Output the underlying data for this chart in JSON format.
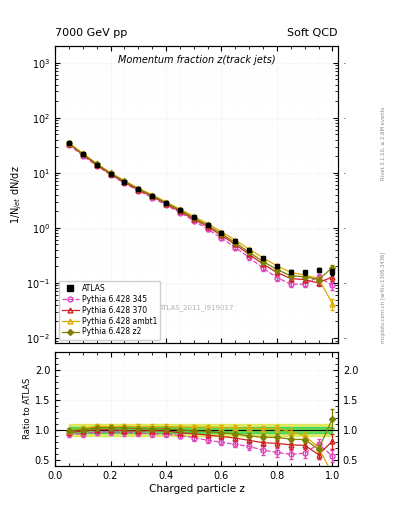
{
  "title_main": "Momentum fraction z(track jets)",
  "title_top_left": "7000 GeV pp",
  "title_top_right": "Soft QCD",
  "ylabel_main": "1/N$_{jet}$ dN/dz",
  "ylabel_ratio": "Ratio to ATLAS",
  "xlabel": "Charged particle z",
  "watermark": "ATLAS_2011_I919017",
  "right_label_top": "Rivet 3.1.10, ≥ 2.6M events",
  "right_label_bottom": "mcplots.cern.ch [arXiv:1306.3436]",
  "ylim_main": [
    0.008,
    2000
  ],
  "ylim_ratio": [
    0.4,
    2.3
  ],
  "xlim": [
    0.0,
    1.02
  ],
  "atlas_x": [
    0.05,
    0.1,
    0.15,
    0.2,
    0.25,
    0.3,
    0.35,
    0.4,
    0.45,
    0.5,
    0.55,
    0.6,
    0.65,
    0.7,
    0.75,
    0.8,
    0.85,
    0.9,
    0.95,
    1.0
  ],
  "atlas_y": [
    35.0,
    22.0,
    14.0,
    9.5,
    6.8,
    5.0,
    3.8,
    2.8,
    2.1,
    1.55,
    1.15,
    0.82,
    0.58,
    0.4,
    0.28,
    0.2,
    0.16,
    0.155,
    0.17,
    0.16
  ],
  "atlas_yerr": [
    1.5,
    0.8,
    0.5,
    0.35,
    0.25,
    0.18,
    0.13,
    0.1,
    0.08,
    0.06,
    0.05,
    0.04,
    0.03,
    0.02,
    0.015,
    0.013,
    0.012,
    0.013,
    0.015,
    0.02
  ],
  "p345_x": [
    0.05,
    0.1,
    0.15,
    0.2,
    0.25,
    0.3,
    0.35,
    0.4,
    0.45,
    0.5,
    0.55,
    0.6,
    0.65,
    0.7,
    0.75,
    0.8,
    0.85,
    0.9,
    0.95,
    1.0
  ],
  "p345_y": [
    32.5,
    20.5,
    13.5,
    9.2,
    6.5,
    4.75,
    3.55,
    2.6,
    1.9,
    1.35,
    0.95,
    0.65,
    0.44,
    0.29,
    0.185,
    0.125,
    0.095,
    0.095,
    0.13,
    0.09
  ],
  "p345_yerr": [
    1.8,
    1.1,
    0.7,
    0.5,
    0.35,
    0.25,
    0.18,
    0.14,
    0.1,
    0.08,
    0.06,
    0.04,
    0.03,
    0.025,
    0.02,
    0.015,
    0.012,
    0.012,
    0.015,
    0.015
  ],
  "p370_x": [
    0.05,
    0.1,
    0.15,
    0.2,
    0.25,
    0.3,
    0.35,
    0.4,
    0.45,
    0.5,
    0.55,
    0.6,
    0.65,
    0.7,
    0.75,
    0.8,
    0.85,
    0.9,
    0.95,
    1.0
  ],
  "p370_y": [
    33.5,
    21.5,
    14.0,
    9.5,
    6.7,
    4.9,
    3.75,
    2.75,
    2.0,
    1.45,
    1.05,
    0.73,
    0.5,
    0.33,
    0.22,
    0.155,
    0.12,
    0.115,
    0.1,
    0.13
  ],
  "p370_yerr": [
    1.5,
    0.9,
    0.6,
    0.4,
    0.28,
    0.2,
    0.15,
    0.11,
    0.08,
    0.06,
    0.05,
    0.035,
    0.025,
    0.02,
    0.015,
    0.012,
    0.01,
    0.01,
    0.012,
    0.02
  ],
  "pambt1_x": [
    0.05,
    0.1,
    0.15,
    0.2,
    0.25,
    0.3,
    0.35,
    0.4,
    0.45,
    0.5,
    0.55,
    0.6,
    0.65,
    0.7,
    0.75,
    0.8,
    0.85,
    0.9,
    0.95,
    1.0
  ],
  "pambt1_y": [
    34.5,
    22.5,
    14.8,
    10.0,
    7.2,
    5.25,
    4.0,
    2.95,
    2.2,
    1.62,
    1.2,
    0.85,
    0.6,
    0.41,
    0.285,
    0.205,
    0.155,
    0.14,
    0.12,
    0.042
  ],
  "pambt1_yerr": [
    1.5,
    0.9,
    0.6,
    0.4,
    0.28,
    0.2,
    0.15,
    0.11,
    0.08,
    0.065,
    0.05,
    0.035,
    0.025,
    0.02,
    0.015,
    0.012,
    0.01,
    0.01,
    0.012,
    0.01
  ],
  "pz2_x": [
    0.05,
    0.1,
    0.15,
    0.2,
    0.25,
    0.3,
    0.35,
    0.4,
    0.45,
    0.5,
    0.55,
    0.6,
    0.65,
    0.7,
    0.75,
    0.8,
    0.85,
    0.9,
    0.95,
    1.0
  ],
  "pz2_y": [
    34.5,
    22.0,
    14.5,
    9.8,
    7.0,
    5.1,
    3.85,
    2.85,
    2.1,
    1.52,
    1.12,
    0.78,
    0.54,
    0.36,
    0.245,
    0.175,
    0.135,
    0.13,
    0.115,
    0.19
  ],
  "pz2_yerr": [
    1.5,
    0.9,
    0.6,
    0.4,
    0.28,
    0.2,
    0.15,
    0.11,
    0.08,
    0.06,
    0.05,
    0.035,
    0.025,
    0.02,
    0.015,
    0.012,
    0.01,
    0.01,
    0.012,
    0.025
  ],
  "color_atlas": "#000000",
  "color_p345": "#dd44bb",
  "color_p370": "#cc2222",
  "color_pambt1": "#ddaa00",
  "color_pz2": "#808000",
  "band_inner_color": "#00cc44",
  "band_outer_color": "#ccdd00",
  "band_inner_alpha": 0.55,
  "band_outer_alpha": 0.55
}
